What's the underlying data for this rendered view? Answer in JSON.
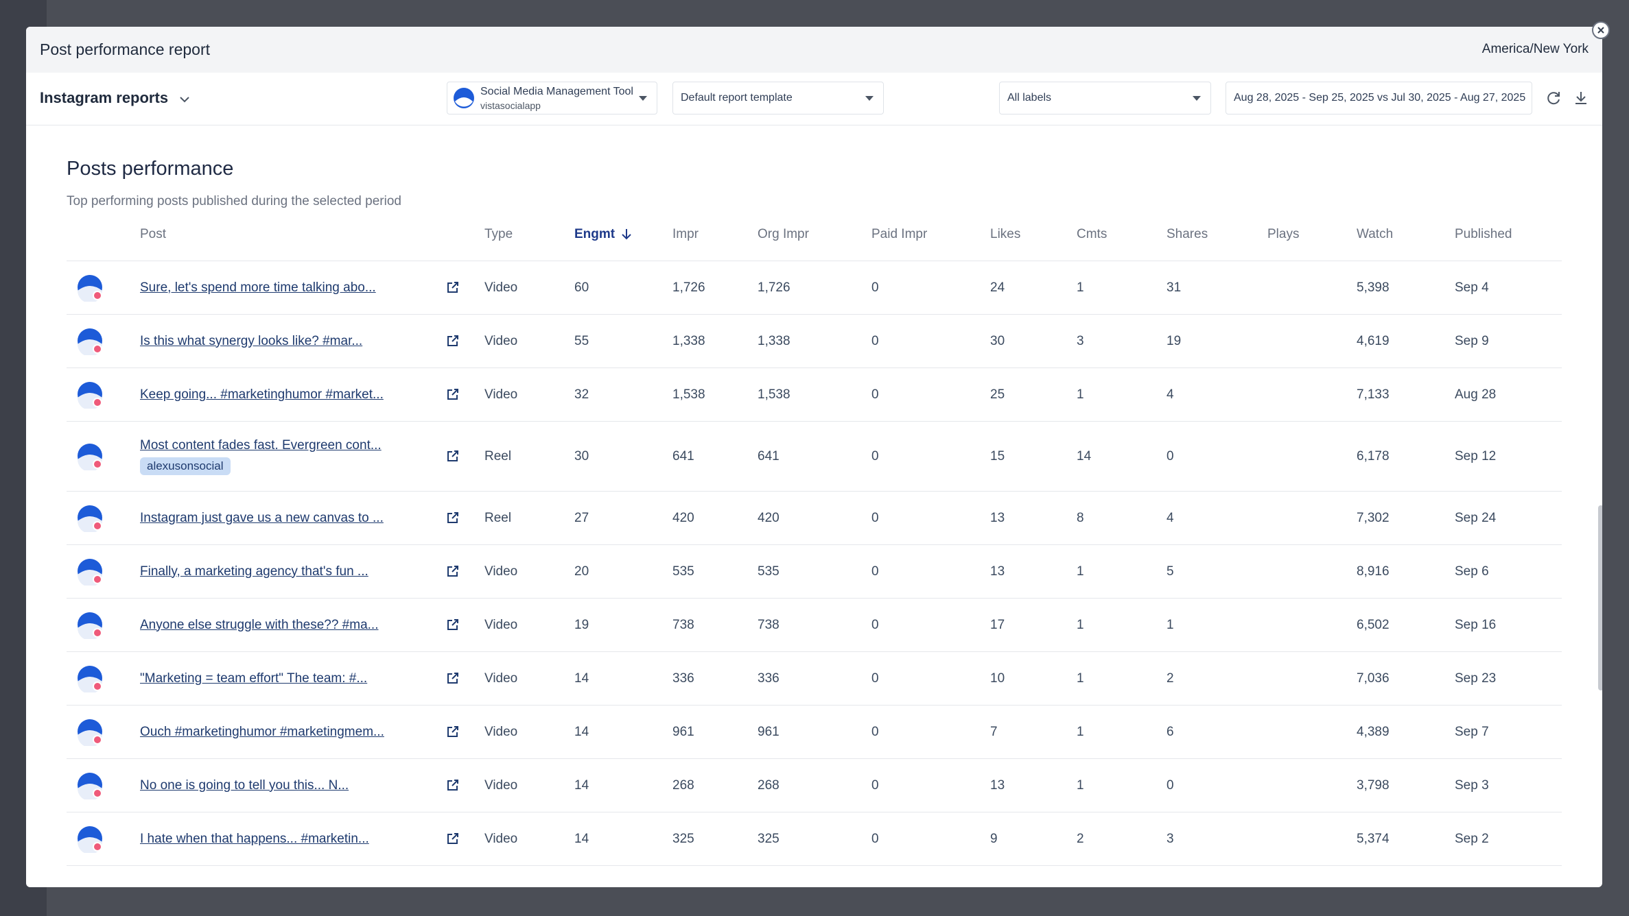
{
  "header": {
    "title": "Post performance report",
    "timezone": "America/New York"
  },
  "toolbar": {
    "report_name": "Instagram reports",
    "profile_name": "Social Media Management Tool",
    "profile_handle": "vistasocialapp",
    "template": "Default report template",
    "labels": "All labels",
    "date_range": "Aug 28, 2025 - Sep 25, 2025 vs Jul 30, 2025 - Aug 27, 2025"
  },
  "section": {
    "title": "Posts performance",
    "subtitle": "Top performing posts published during the selected period"
  },
  "table": {
    "columns": [
      "Post",
      "Type",
      "Engmt",
      "Impr",
      "Org Impr",
      "Paid Impr",
      "Likes",
      "Cmts",
      "Shares",
      "Plays",
      "Watch",
      "Published"
    ],
    "rows": [
      {
        "post": "Sure, let's spend more time talking abo...",
        "cells": [
          "Video",
          "60",
          "1,726",
          "1,726",
          "0",
          "24",
          "1",
          "31",
          null,
          "5,398",
          "Sep 4"
        ]
      },
      {
        "post": "Is this what synergy looks like? #mar...",
        "cells": [
          "Video",
          "55",
          "1,338",
          "1,338",
          "0",
          "30",
          "3",
          "19",
          null,
          "4,619",
          "Sep 9"
        ]
      },
      {
        "post": "Keep going... #marketinghumor #market...",
        "cells": [
          "Video",
          "32",
          "1,538",
          "1,538",
          "0",
          "25",
          "1",
          "4",
          null,
          "7,133",
          "Aug 28"
        ]
      },
      {
        "post": "Most content fades fast. Evergreen cont...",
        "tag": "alexusonsocial",
        "cells": [
          "Reel",
          "30",
          "641",
          "641",
          "0",
          "15",
          "14",
          "0",
          null,
          "6,178",
          "Sep 12"
        ]
      },
      {
        "post": "Instagram just gave us a new canvas to ...",
        "cells": [
          "Reel",
          "27",
          "420",
          "420",
          "0",
          "13",
          "8",
          "4",
          null,
          "7,302",
          "Sep 24"
        ]
      },
      {
        "post": "Finally, a marketing agency that's fun ...",
        "cells": [
          "Video",
          "20",
          "535",
          "535",
          "0",
          "13",
          "1",
          "5",
          null,
          "8,916",
          "Sep 6"
        ]
      },
      {
        "post": "Anyone else struggle with these?? #ma...",
        "cells": [
          "Video",
          "19",
          "738",
          "738",
          "0",
          "17",
          "1",
          "1",
          null,
          "6,502",
          "Sep 16"
        ]
      },
      {
        "post": "\"Marketing = team effort\" The team: #...",
        "cells": [
          "Video",
          "14",
          "336",
          "336",
          "0",
          "10",
          "1",
          "2",
          null,
          "7,036",
          "Sep 23"
        ]
      },
      {
        "post": "Ouch #marketinghumor #marketingmem...",
        "cells": [
          "Video",
          "14",
          "961",
          "961",
          "0",
          "7",
          "1",
          "6",
          null,
          "4,389",
          "Sep 7"
        ]
      },
      {
        "post": "No one is going to tell you this... N...",
        "cells": [
          "Video",
          "14",
          "268",
          "268",
          "0",
          "13",
          "1",
          "0",
          null,
          "3,798",
          "Sep 3"
        ]
      },
      {
        "post": "I hate when that happens... #marketin...",
        "cells": [
          "Video",
          "14",
          "325",
          "325",
          "0",
          "9",
          "2",
          "3",
          null,
          "5,374",
          "Sep 2"
        ]
      }
    ]
  }
}
